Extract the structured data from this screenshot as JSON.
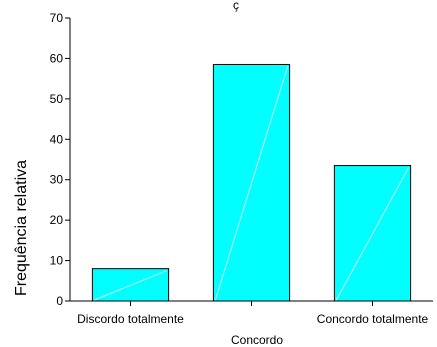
{
  "chart_data": {
    "type": "bar",
    "title": "ç",
    "categories": [
      "Discordo totalmente",
      "",
      "Concordo totalmente"
    ],
    "values": [
      8,
      58.5,
      33.5
    ],
    "xlabel": "Concordo",
    "ylabel": "Frequência relativa",
    "ylim": [
      0,
      70
    ],
    "yticks": [
      0,
      10,
      20,
      30,
      40,
      50,
      60,
      70
    ],
    "grid": false,
    "legend": "none",
    "bar_color": "#00ffff",
    "bar_edge_color": "#000000"
  }
}
